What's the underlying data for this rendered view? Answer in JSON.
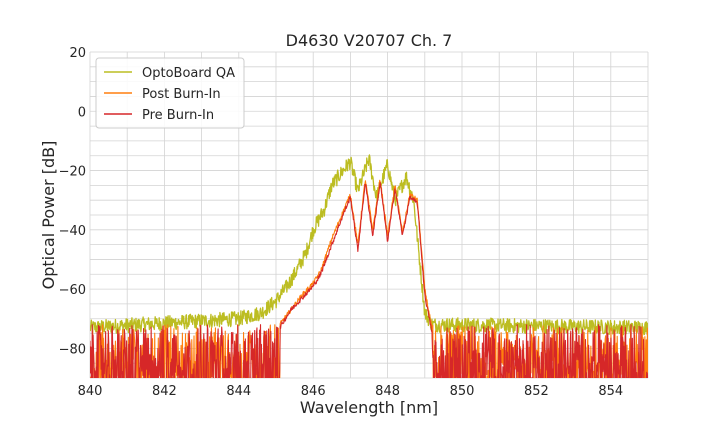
{
  "chart_data": {
    "type": "line",
    "title": "D4630 V20707 Ch. 7",
    "xlabel": "Wavelength [nm]",
    "ylabel": "Optical Power [dB]",
    "xlim": [
      840,
      855
    ],
    "ylim": [
      -90,
      20
    ],
    "xticks": [
      840,
      842,
      844,
      846,
      848,
      850,
      852,
      854
    ],
    "yticks": [
      20,
      0,
      -20,
      -40,
      -60,
      -80
    ],
    "grid": true,
    "legend_position": "top-left",
    "noise_floor": {
      "level": -76,
      "range": [
        -90,
        -72
      ],
      "region_low": [
        840,
        845.1
      ],
      "region_high": [
        849.2,
        855
      ]
    },
    "series": [
      {
        "name": "OptoBoard QA",
        "color": "#bcbd22",
        "x": [
          840,
          844.0,
          844.6,
          845.0,
          845.3,
          845.5,
          845.8,
          846.0,
          846.3,
          846.5,
          846.8,
          847.0,
          847.2,
          847.5,
          847.7,
          848.0,
          848.2,
          848.5,
          848.7,
          849.0,
          849.2,
          855
        ],
        "values": [
          -73,
          -70,
          -68,
          -64,
          -59,
          -55,
          -48,
          -40,
          -33,
          -25,
          -20,
          -17,
          -27,
          -16,
          -29,
          -18,
          -30,
          -22,
          -30,
          -68,
          -72,
          -73
        ]
      },
      {
        "name": "Post Burn-In",
        "color": "#ff7f0e",
        "x": [
          845.1,
          845.4,
          845.7,
          846.0,
          846.2,
          846.5,
          846.8,
          847.0,
          847.2,
          847.4,
          847.6,
          847.8,
          848.0,
          848.2,
          848.4,
          848.6,
          848.8,
          849.0,
          849.2
        ],
        "values": [
          -72,
          -67,
          -62,
          -58,
          -54,
          -43,
          -34,
          -28,
          -45,
          -23,
          -40,
          -23,
          -42,
          -25,
          -41,
          -28,
          -30,
          -60,
          -74
        ]
      },
      {
        "name": "Pre Burn-In",
        "color": "#d62728",
        "x": [
          845.1,
          845.4,
          845.7,
          846.0,
          846.2,
          846.5,
          846.8,
          847.0,
          847.2,
          847.4,
          847.6,
          847.8,
          848.0,
          848.2,
          848.4,
          848.6,
          848.8,
          849.0,
          849.2
        ],
        "values": [
          -73,
          -67,
          -63,
          -59,
          -55,
          -45,
          -35,
          -29,
          -47,
          -24,
          -42,
          -24,
          -44,
          -26,
          -42,
          -29,
          -31,
          -62,
          -75
        ]
      }
    ]
  }
}
